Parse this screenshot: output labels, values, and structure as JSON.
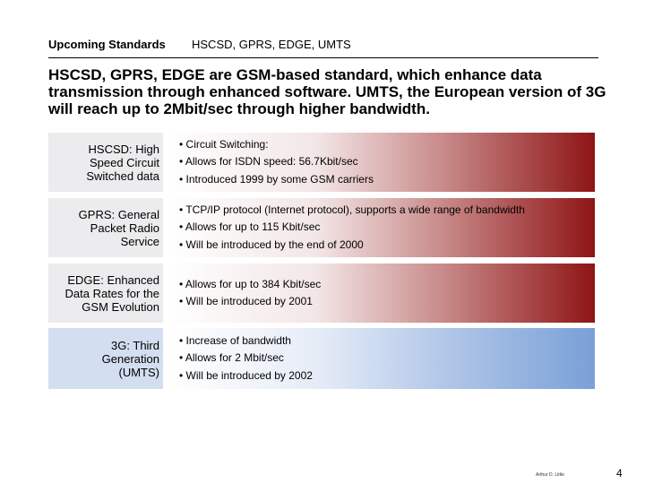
{
  "header": {
    "section": "Upcoming Standards",
    "topic": "HSCSD, GPRS, EDGE, UMTS"
  },
  "headline": "HSCSD, GPRS, EDGE are GSM-based standard, which enhance data transmission through enhanced software. UMTS, the European version of 3G will reach up to 2Mbit/sec through higher bandwidth.",
  "rows": [
    {
      "label": "HSCSD: High\nSpeed Circuit\nSwitched data",
      "bullets": [
        "• Circuit Switching:",
        "• Allows for ISDN speed: 56.7Kbit/sec",
        "• Introduced 1999 by some GSM carriers"
      ]
    },
    {
      "label": "GPRS: General\nPacket Radio\nService",
      "bullets": [
        "• TCP/IP protocol (Internet protocol), supports a wide range of bandwidth",
        "• Allows for up to 115 Kbit/sec",
        "• Will be introduced by the end of 2000"
      ]
    },
    {
      "label": "EDGE: Enhanced\nData Rates for the\nGSM Evolution",
      "bullets": [
        "• Allows for up to 384 Kbit/sec",
        "• Will be introduced by 2001"
      ]
    },
    {
      "label": "3G: Third\nGeneration\n(UMTS)",
      "bullets": [
        "• Increase of bandwidth",
        "• Allows for 2 Mbit/sec",
        "• Will be introduced by 2002"
      ]
    }
  ],
  "footer": {
    "small_text": "Arthur D. Little",
    "page_number": "4"
  }
}
